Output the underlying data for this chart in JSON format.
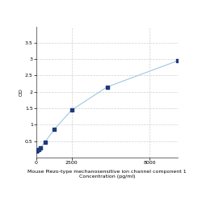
{
  "title_line1": "Mouse Piezo-type mechanosensitive ion channel component 1",
  "title_line2": "Concentration (pg/ml)",
  "ylabel": "OD",
  "x_values": [
    0,
    78,
    156,
    313,
    625,
    1250,
    2500,
    5000,
    10000
  ],
  "y_values": [
    0.19,
    0.22,
    0.25,
    0.3,
    0.48,
    0.85,
    1.45,
    2.15,
    2.95
  ],
  "dot_color": "#1F3A7A",
  "line_color": "#9DC8E0",
  "marker": "s",
  "marker_size": 3,
  "xlim": [
    0,
    10000
  ],
  "ylim": [
    0.0,
    4.0
  ],
  "yticks": [
    0.5,
    1.0,
    1.5,
    2.0,
    2.5,
    3.0,
    3.5
  ],
  "ytick_labels": [
    "0.5",
    "1",
    "1.5",
    "2",
    "2.5",
    "3",
    "3.5"
  ],
  "xtick_positions": [
    0,
    2500,
    8000
  ],
  "xtick_labels": [
    "0",
    "2500",
    "8000"
  ],
  "background_color": "#ffffff",
  "grid_color": "#d0d0d0",
  "tick_labelsize": 4.5,
  "label_fontsize": 4.5
}
